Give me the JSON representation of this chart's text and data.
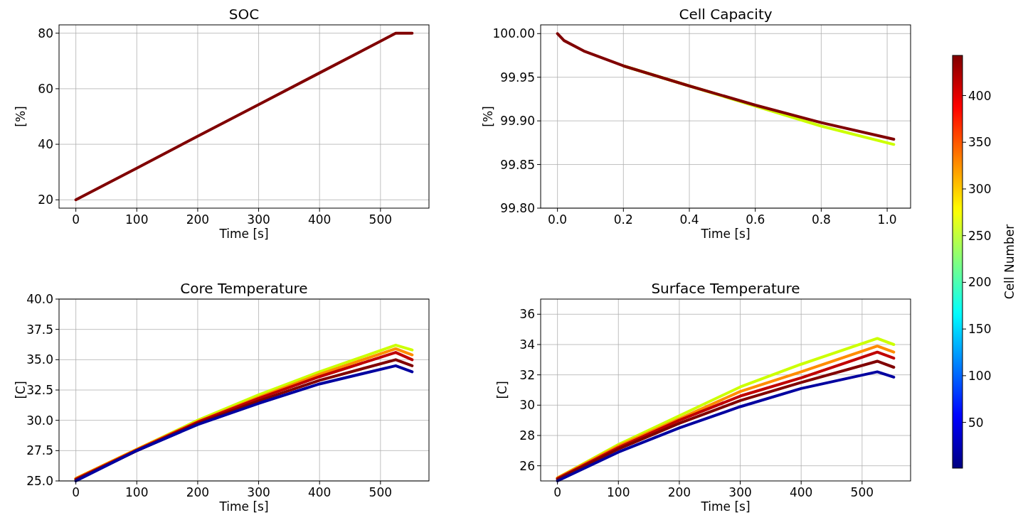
{
  "chart_data": [
    {
      "type": "line",
      "title": "SOC",
      "xlabel": "Time [s]",
      "ylabel": "[%]",
      "grid": true,
      "x": [
        0,
        100,
        200,
        300,
        400,
        500,
        525,
        552
      ],
      "xlim": [
        -27.6,
        579.6
      ],
      "xticks": [
        0,
        100,
        200,
        300,
        400,
        500
      ],
      "ylim": [
        17,
        83
      ],
      "yticks": [
        20,
        40,
        60,
        80
      ],
      "series": [
        {
          "color": "#800000",
          "values": [
            20,
            31.4,
            42.9,
            54.3,
            65.7,
            77.1,
            80,
            80
          ]
        }
      ]
    },
    {
      "type": "line",
      "title": "Cell Capacity",
      "xlabel": "Time [s]",
      "ylabel": "[%]",
      "grid": true,
      "x": [
        0,
        0.02,
        0.08,
        0.2,
        0.4,
        0.6,
        0.8,
        1.02
      ],
      "xlim": [
        -0.051,
        1.071
      ],
      "xticks": [
        {
          "value": 0,
          "label": "0.0"
        },
        {
          "value": 0.2,
          "label": "0.2"
        },
        {
          "value": 0.4,
          "label": "0.4"
        },
        {
          "value": 0.6,
          "label": "0.6"
        },
        {
          "value": 0.8,
          "label": "0.8"
        },
        {
          "value": 1,
          "label": "1.0"
        }
      ],
      "ylim": [
        99.8,
        100.01
      ],
      "yticks": [
        {
          "value": 99.8,
          "label": "99.80"
        },
        {
          "value": 99.85,
          "label": "99.85"
        },
        {
          "value": 99.9,
          "label": "99.90"
        },
        {
          "value": 99.95,
          "label": "99.95"
        },
        {
          "value": 100,
          "label": "100.00"
        }
      ],
      "series": [
        {
          "color": "#ccff00",
          "values": [
            null,
            null,
            null,
            99.963,
            99.94,
            99.917,
            99.894,
            99.873
          ]
        },
        {
          "color": "#800000",
          "values": [
            100,
            99.992,
            99.98,
            99.963,
            99.94,
            99.918,
            99.898,
            99.879
          ]
        }
      ]
    },
    {
      "type": "line",
      "title": "Core Temperature",
      "xlabel": "Time [s]",
      "ylabel": "[C]",
      "grid": true,
      "x": [
        0,
        100,
        200,
        300,
        400,
        525,
        552
      ],
      "xlim": [
        -27.6,
        579.6
      ],
      "xticks": [
        0,
        100,
        200,
        300,
        400,
        500
      ],
      "ylim": [
        25,
        40
      ],
      "yticks": [
        {
          "value": 25,
          "label": "25.0"
        },
        27.5,
        {
          "value": 30,
          "label": "30.0"
        },
        32.5,
        {
          "value": 35,
          "label": "35.0"
        },
        37.5,
        {
          "value": 40,
          "label": "40.0"
        }
      ],
      "series": [
        {
          "color": "#ccff00",
          "values": [
            25.2,
            27.6,
            30,
            32.1,
            34,
            36.2,
            35.8
          ]
        },
        {
          "color": "#ff8c00",
          "values": [
            25.2,
            27.6,
            29.9,
            31.9,
            33.8,
            35.9,
            35.4
          ]
        },
        {
          "color": "#c00000",
          "values": [
            25.15,
            27.55,
            29.85,
            31.8,
            33.6,
            35.6,
            35
          ]
        },
        {
          "color": "#800000",
          "values": [
            25.1,
            27.5,
            29.75,
            31.6,
            33.3,
            35,
            34.5
          ]
        },
        {
          "color": "#0000a0",
          "values": [
            25,
            27.5,
            29.65,
            31.4,
            33,
            34.5,
            34
          ]
        }
      ]
    },
    {
      "type": "line",
      "title": "Surface Temperature",
      "xlabel": "Time [s]",
      "ylabel": "[C]",
      "grid": true,
      "x": [
        0,
        100,
        200,
        300,
        400,
        525,
        552
      ],
      "xlim": [
        -27.6,
        579.6
      ],
      "xticks": [
        0,
        100,
        200,
        300,
        400,
        500
      ],
      "ylim": [
        25,
        37
      ],
      "yticks": [
        26,
        28,
        30,
        32,
        34,
        36
      ],
      "clabel": "Cell Number",
      "clim": [
        1,
        443
      ],
      "cticks": [
        50,
        100,
        150,
        200,
        250,
        300,
        350,
        400
      ],
      "series": [
        {
          "color": "#ccff00",
          "values": [
            25.2,
            27.4,
            29.3,
            31.2,
            32.7,
            34.4,
            34
          ]
        },
        {
          "color": "#ff8c00",
          "values": [
            25.2,
            27.3,
            29.1,
            30.9,
            32.2,
            33.9,
            33.5
          ]
        },
        {
          "color": "#c00000",
          "values": [
            25.15,
            27.2,
            29,
            30.6,
            31.8,
            33.5,
            33.1
          ]
        },
        {
          "color": "#800000",
          "values": [
            25.1,
            27.1,
            28.8,
            30.3,
            31.5,
            32.9,
            32.5
          ]
        },
        {
          "color": "#0000a0",
          "values": [
            25,
            26.9,
            28.5,
            29.9,
            31.1,
            32.2,
            31.85
          ]
        }
      ]
    }
  ]
}
